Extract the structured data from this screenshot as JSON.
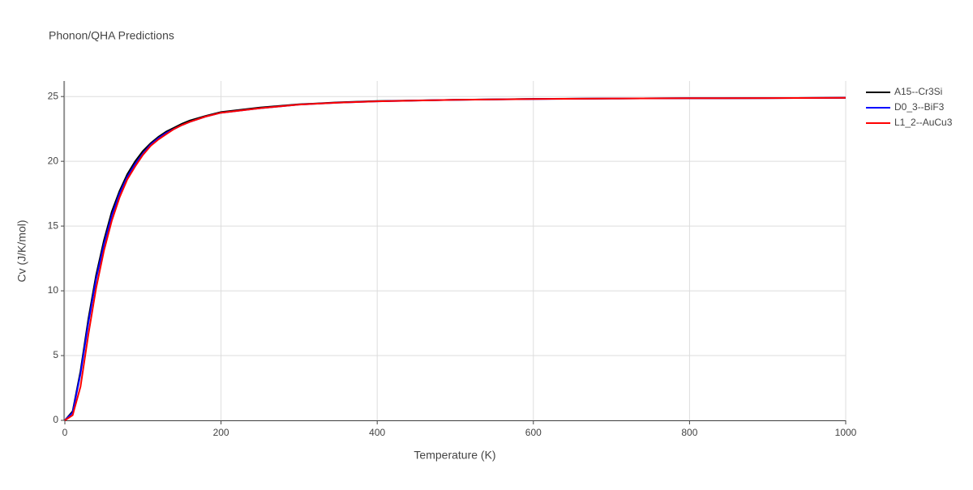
{
  "chart_data": {
    "type": "line",
    "title": "Phonon/QHA Predictions",
    "xlabel": "Temperature (K)",
    "ylabel": "Cv (J/K/mol)",
    "x": [
      0,
      10,
      20,
      30,
      40,
      50,
      60,
      70,
      80,
      90,
      100,
      110,
      120,
      130,
      140,
      150,
      160,
      180,
      200,
      250,
      300,
      350,
      400,
      500,
      600,
      700,
      800,
      900,
      1000
    ],
    "series": [
      {
        "name": "A15--Cr3Si",
        "color": "#000000",
        "values": [
          0,
          0.7,
          3.8,
          7.8,
          11.2,
          13.9,
          16.1,
          17.7,
          19.0,
          20.0,
          20.8,
          21.4,
          21.9,
          22.3,
          22.6,
          22.9,
          23.15,
          23.5,
          23.8,
          24.15,
          24.4,
          24.55,
          24.65,
          24.75,
          24.82,
          24.85,
          24.87,
          24.88,
          24.9
        ]
      },
      {
        "name": "D0_3--BiF3",
        "color": "#0000ff",
        "values": [
          0,
          0.6,
          3.6,
          7.5,
          10.9,
          13.6,
          15.8,
          17.5,
          18.8,
          19.8,
          20.6,
          21.3,
          21.8,
          22.2,
          22.5,
          22.8,
          23.05,
          23.45,
          23.75,
          24.1,
          24.38,
          24.53,
          24.63,
          24.74,
          24.81,
          24.85,
          24.87,
          24.88,
          24.9
        ]
      },
      {
        "name": "L1_2--AuCu3",
        "color": "#ff0000",
        "values": [
          0,
          0.4,
          2.6,
          6.6,
          10.2,
          13.1,
          15.4,
          17.2,
          18.6,
          19.6,
          20.5,
          21.2,
          21.7,
          22.1,
          22.5,
          22.8,
          23.05,
          23.45,
          23.75,
          24.1,
          24.38,
          24.53,
          24.63,
          24.74,
          24.81,
          24.85,
          24.87,
          24.88,
          24.9
        ]
      }
    ],
    "xlim": [
      0,
      1000
    ],
    "xticks": [
      0,
      200,
      400,
      600,
      800,
      1000
    ],
    "ylim": [
      0,
      26.2
    ],
    "yticks": [
      0,
      5,
      10,
      15,
      20,
      25
    ],
    "grid": true,
    "legend": "right"
  }
}
